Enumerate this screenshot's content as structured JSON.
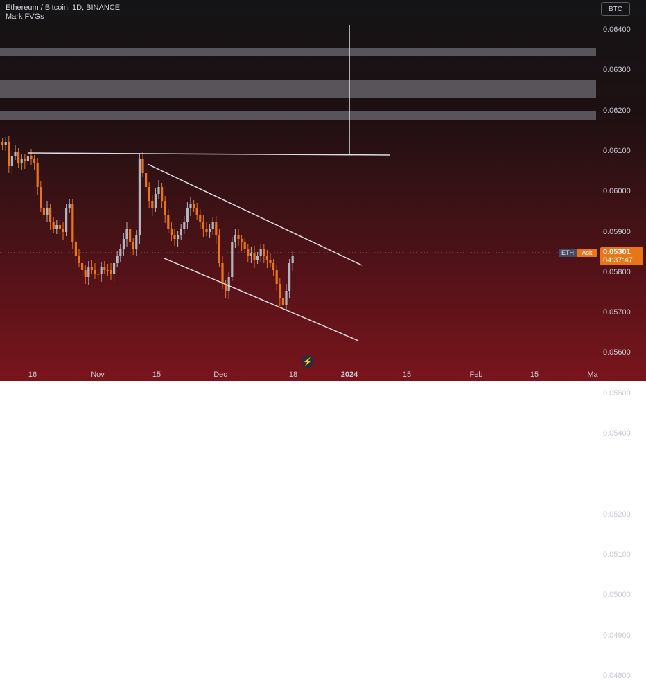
{
  "legend": {
    "title": "Ethereum / Bitcoin, 1D, BINANCE",
    "indicator": "Mark FVGs"
  },
  "symbol_button": "BTC",
  "price_axis": {
    "ticks": [
      "0.06400",
      "0.06300",
      "0.06200",
      "0.06100",
      "0.06000",
      "0.05900",
      "0.05800",
      "0.05700",
      "0.05600",
      "0.05500",
      "0.05400",
      "0.05200",
      "0.05100",
      "0.05000",
      "0.04900",
      "0.04800"
    ]
  },
  "time_axis": {
    "labels": [
      "16",
      "Nov",
      "15",
      "Dec",
      "18",
      "2024",
      "15",
      "Feb",
      "15",
      "Ma"
    ]
  },
  "last_price": {
    "symbol_badge": "ETH",
    "side_badge": "Ask",
    "value": "0.05301",
    "countdown": "04:37:47"
  },
  "flash_icon": "lightning-icon",
  "colors": {
    "up_candle": "#b2b5be",
    "down_candle": "#e87618",
    "drawing_line": "#d9dce3",
    "fvg_zone": "#8a8d96",
    "price_tag": "#e87618"
  }
}
